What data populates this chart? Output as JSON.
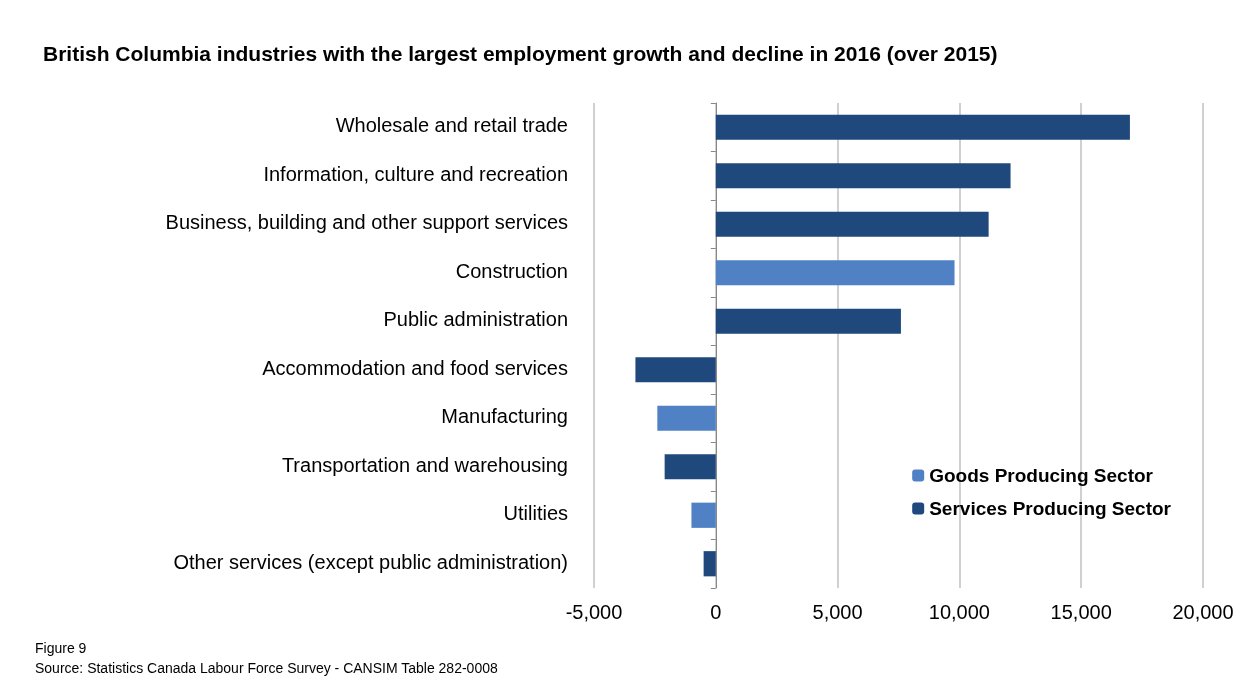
{
  "chart_data": {
    "type": "bar",
    "orientation": "horizontal",
    "title": "British Columbia industries with the largest employment growth and decline in 2016 (over 2015)",
    "categories": [
      "Wholesale and retail trade",
      "Information, culture and recreation",
      "Business, building and other support services",
      "Construction",
      "Public administration",
      "Accommodation and food services",
      "Manufacturing",
      "Transportation and warehousing",
      "Utilities",
      "Other services (except public administration)"
    ],
    "series": [
      {
        "name": "Goods Producing Sector",
        "color": "#4f81c4",
        "values": [
          null,
          null,
          null,
          9800,
          null,
          null,
          -2400,
          null,
          -1000,
          null
        ]
      },
      {
        "name": "Services Producing Sector",
        "color": "#1f497d",
        "values": [
          17000,
          12100,
          11200,
          null,
          7600,
          -3300,
          null,
          -2100,
          null,
          -500
        ]
      }
    ],
    "xlim": [
      -5000,
      20000
    ],
    "xticks": [
      {
        "value": -5000,
        "label": "-5,000"
      },
      0,
      {
        "value": 5000,
        "label": "5,000"
      },
      {
        "value": 10000,
        "label": "10,000"
      },
      {
        "value": 15000,
        "label": "15,000"
      },
      {
        "value": 20000,
        "label": "20,000"
      }
    ],
    "grid": "x",
    "legend": "bottom right",
    "annotations": [
      "Figure 9",
      "Source: Statistics Canada Labour Force Survey - CANSIM Table 282-0008"
    ]
  }
}
